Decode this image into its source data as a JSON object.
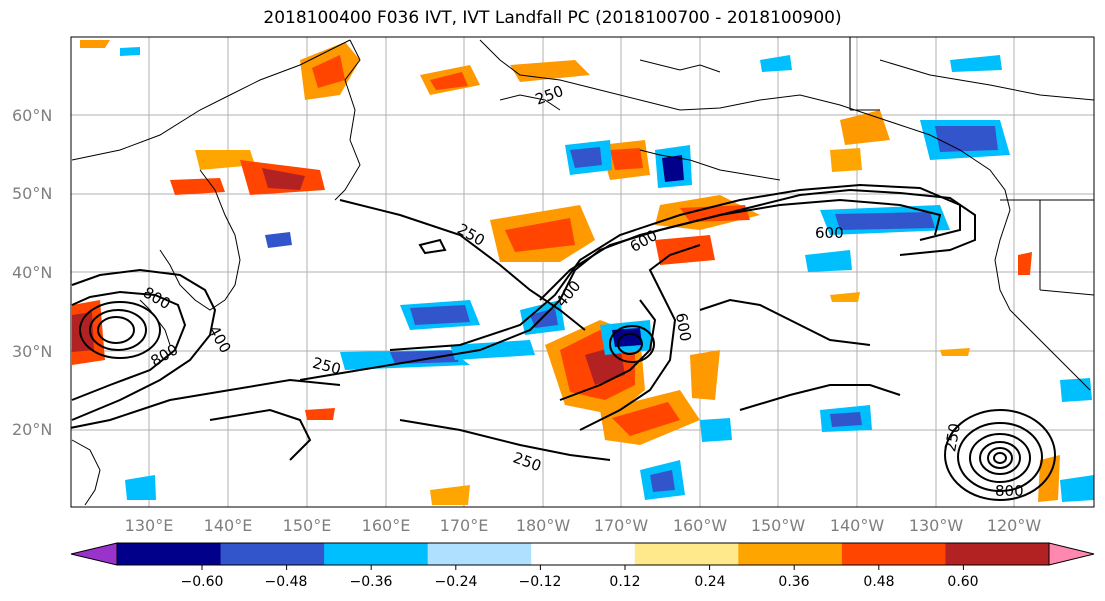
{
  "title": "2018100400 F036 IVT, IVT Landfall PC (2018100700 - 2018100900)",
  "map": {
    "lat_ticks": [
      "60°N",
      "50°N",
      "40°N",
      "30°N",
      "20°N"
    ],
    "lon_ticks": [
      "130°E",
      "140°E",
      "150°E",
      "160°E",
      "170°E",
      "180°W",
      "170°W",
      "160°W",
      "150°W",
      "140°W",
      "130°W",
      "120°W"
    ],
    "grid": true,
    "contour_labels": [
      "250",
      "250",
      "250",
      "250",
      "250",
      "400",
      "400",
      "600",
      "600",
      "600",
      "800",
      "800",
      "800"
    ]
  },
  "colorbar": {
    "colors": [
      "#9933cc",
      "#00008b",
      "#3355cc",
      "#00bfff",
      "#b0e0ff",
      "#ffffff",
      "#ffe98a",
      "#ffa500",
      "#ff4500",
      "#b22222",
      "#ff88b0"
    ],
    "tick_labels": [
      "−0.60",
      "−0.48",
      "−0.36",
      "−0.24",
      "−0.12",
      "0.12",
      "0.24",
      "0.36",
      "0.48",
      "0.60"
    ]
  }
}
